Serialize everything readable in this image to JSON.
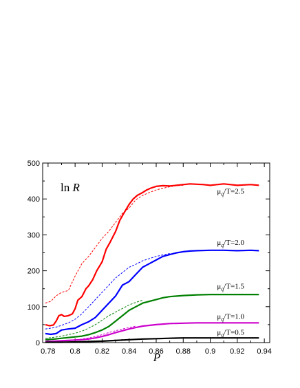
{
  "chart_data": {
    "type": "line",
    "title": "",
    "annotation": "ln R",
    "xlabel": "P",
    "ylabel": "",
    "xlim": [
      0.776,
      0.944
    ],
    "ylim": [
      0,
      500
    ],
    "xticks": [
      0.78,
      0.8,
      0.82,
      0.84,
      0.86,
      0.88,
      0.9,
      0.92,
      0.94
    ],
    "xtick_labels": [
      "0.78",
      "0.8",
      "0.82",
      "0.84",
      "0.86",
      "0.88",
      "0.9",
      "0.92",
      "0.94"
    ],
    "yticks": [
      0,
      100,
      200,
      300,
      400,
      500
    ],
    "ytick_labels": [
      "0",
      "100",
      "200",
      "300",
      "400",
      "500"
    ],
    "grid": false,
    "legend": "inline labels at right",
    "series": [
      {
        "name": "μq/T=2.5",
        "label_parts": [
          "μ",
          "q",
          "/T=2.5"
        ],
        "color": "#ff0000",
        "label_at": [
          0.905,
          415
        ],
        "solid": {
          "x": [
            0.778,
            0.781,
            0.784,
            0.786,
            0.788,
            0.79,
            0.792,
            0.795,
            0.798,
            0.8,
            0.802,
            0.805,
            0.808,
            0.81,
            0.813,
            0.816,
            0.82,
            0.823,
            0.826,
            0.83,
            0.833,
            0.836,
            0.84,
            0.843,
            0.846,
            0.85,
            0.853,
            0.856,
            0.86,
            0.865,
            0.87,
            0.875,
            0.88,
            0.885,
            0.89,
            0.895,
            0.9,
            0.905,
            0.91,
            0.915,
            0.92,
            0.925,
            0.93,
            0.936
          ],
          "y": [
            50,
            47,
            49,
            60,
            75,
            78,
            73,
            75,
            80,
            94,
            118,
            128,
            150,
            158,
            175,
            200,
            225,
            260,
            280,
            310,
            340,
            360,
            385,
            400,
            410,
            418,
            425,
            430,
            435,
            437,
            436,
            438,
            440,
            442,
            441,
            440,
            438,
            440,
            442,
            440,
            438,
            439,
            440,
            438
          ]
        },
        "dashed": {
          "x": [
            0.778,
            0.782,
            0.786,
            0.79,
            0.795,
            0.8,
            0.805,
            0.81,
            0.815,
            0.82,
            0.825,
            0.83,
            0.835,
            0.84,
            0.845,
            0.85,
            0.855,
            0.86,
            0.865,
            0.87,
            0.875,
            0.88
          ],
          "y": [
            110,
            115,
            130,
            140,
            145,
            185,
            220,
            240,
            265,
            290,
            310,
            335,
            360,
            375,
            398,
            410,
            418,
            425,
            430,
            434,
            437,
            438
          ]
        }
      },
      {
        "name": "μq/T=2.0",
        "label_parts": [
          "μ",
          "q",
          "/T=2.0"
        ],
        "color": "#0000ff",
        "label_at": [
          0.905,
          272
        ],
        "solid": {
          "x": [
            0.778,
            0.782,
            0.786,
            0.79,
            0.795,
            0.8,
            0.805,
            0.81,
            0.815,
            0.82,
            0.825,
            0.83,
            0.835,
            0.84,
            0.845,
            0.85,
            0.855,
            0.86,
            0.865,
            0.87,
            0.875,
            0.88,
            0.885,
            0.89,
            0.9,
            0.91,
            0.92,
            0.93,
            0.936
          ],
          "y": [
            25,
            23,
            25,
            35,
            38,
            40,
            50,
            58,
            70,
            90,
            110,
            130,
            160,
            170,
            190,
            210,
            220,
            230,
            240,
            245,
            250,
            253,
            255,
            256,
            257,
            257,
            256,
            257,
            256
          ]
        },
        "dashed": {
          "x": [
            0.778,
            0.785,
            0.79,
            0.795,
            0.8,
            0.805,
            0.81,
            0.815,
            0.82,
            0.825,
            0.83,
            0.835,
            0.84,
            0.845,
            0.85,
            0.86,
            0.87
          ],
          "y": [
            38,
            42,
            48,
            55,
            65,
            80,
            100,
            120,
            140,
            160,
            180,
            195,
            210,
            218,
            228,
            240,
            248
          ]
        }
      },
      {
        "name": "μq/T=1.5",
        "label_parts": [
          "μ",
          "q",
          "/T=1.5"
        ],
        "color": "#008000",
        "label_at": [
          0.905,
          150
        ],
        "solid": {
          "x": [
            0.778,
            0.785,
            0.79,
            0.795,
            0.8,
            0.805,
            0.81,
            0.815,
            0.82,
            0.825,
            0.83,
            0.835,
            0.84,
            0.845,
            0.85,
            0.855,
            0.86,
            0.865,
            0.87,
            0.88,
            0.89,
            0.9,
            0.91,
            0.92,
            0.93,
            0.936
          ],
          "y": [
            8,
            10,
            12,
            14,
            16,
            18,
            22,
            28,
            35,
            45,
            60,
            75,
            90,
            100,
            110,
            115,
            120,
            125,
            128,
            131,
            133,
            134,
            134,
            134,
            134,
            134
          ]
        },
        "dashed": {
          "x": [
            0.778,
            0.785,
            0.79,
            0.795,
            0.8,
            0.805,
            0.81,
            0.815,
            0.82,
            0.825,
            0.83,
            0.835,
            0.84,
            0.845,
            0.85
          ],
          "y": [
            12,
            15,
            18,
            22,
            26,
            32,
            40,
            50,
            62,
            75,
            85,
            95,
            105,
            112,
            118
          ]
        }
      },
      {
        "name": "μq/T=1.0",
        "label_parts": [
          "μ",
          "q",
          "/T=1.0"
        ],
        "color": "#cc00cc",
        "label_at": [
          0.905,
          66
        ],
        "solid": {
          "x": [
            0.778,
            0.785,
            0.79,
            0.795,
            0.8,
            0.805,
            0.81,
            0.815,
            0.82,
            0.825,
            0.83,
            0.835,
            0.84,
            0.845,
            0.85,
            0.86,
            0.87,
            0.88,
            0.89,
            0.9,
            0.91,
            0.92,
            0.93,
            0.936
          ],
          "y": [
            3,
            4,
            5,
            6,
            7,
            8,
            10,
            13,
            17,
            22,
            28,
            33,
            38,
            42,
            46,
            50,
            53,
            54,
            55,
            55,
            55,
            55,
            55,
            55
          ]
        },
        "dashed": {
          "x": [
            0.778,
            0.785,
            0.79,
            0.795,
            0.8,
            0.805,
            0.81,
            0.815,
            0.82,
            0.825,
            0.83,
            0.835,
            0.84,
            0.845
          ],
          "y": [
            4,
            5,
            6,
            7,
            8,
            10,
            13,
            17,
            22,
            28,
            33,
            38,
            42,
            46
          ]
        }
      },
      {
        "name": "μq/T=0.5",
        "label_parts": [
          "μ",
          "q",
          "/T=0.5"
        ],
        "color": "#000000",
        "label_at": [
          0.905,
          22
        ],
        "solid": {
          "x": [
            0.778,
            0.79,
            0.8,
            0.81,
            0.82,
            0.83,
            0.84,
            0.85,
            0.86,
            0.87,
            0.88,
            0.89,
            0.9,
            0.91,
            0.92,
            0.93,
            0.936
          ],
          "y": [
            1,
            1,
            2,
            3,
            4,
            6,
            8,
            10,
            11,
            12,
            13,
            13,
            13,
            13,
            13,
            13,
            13
          ]
        },
        "dashed": {
          "x": [
            0.778,
            0.79,
            0.8,
            0.81,
            0.82,
            0.83,
            0.84
          ],
          "y": [
            1,
            1.5,
            2.5,
            3.5,
            5,
            7,
            9
          ]
        }
      }
    ]
  }
}
